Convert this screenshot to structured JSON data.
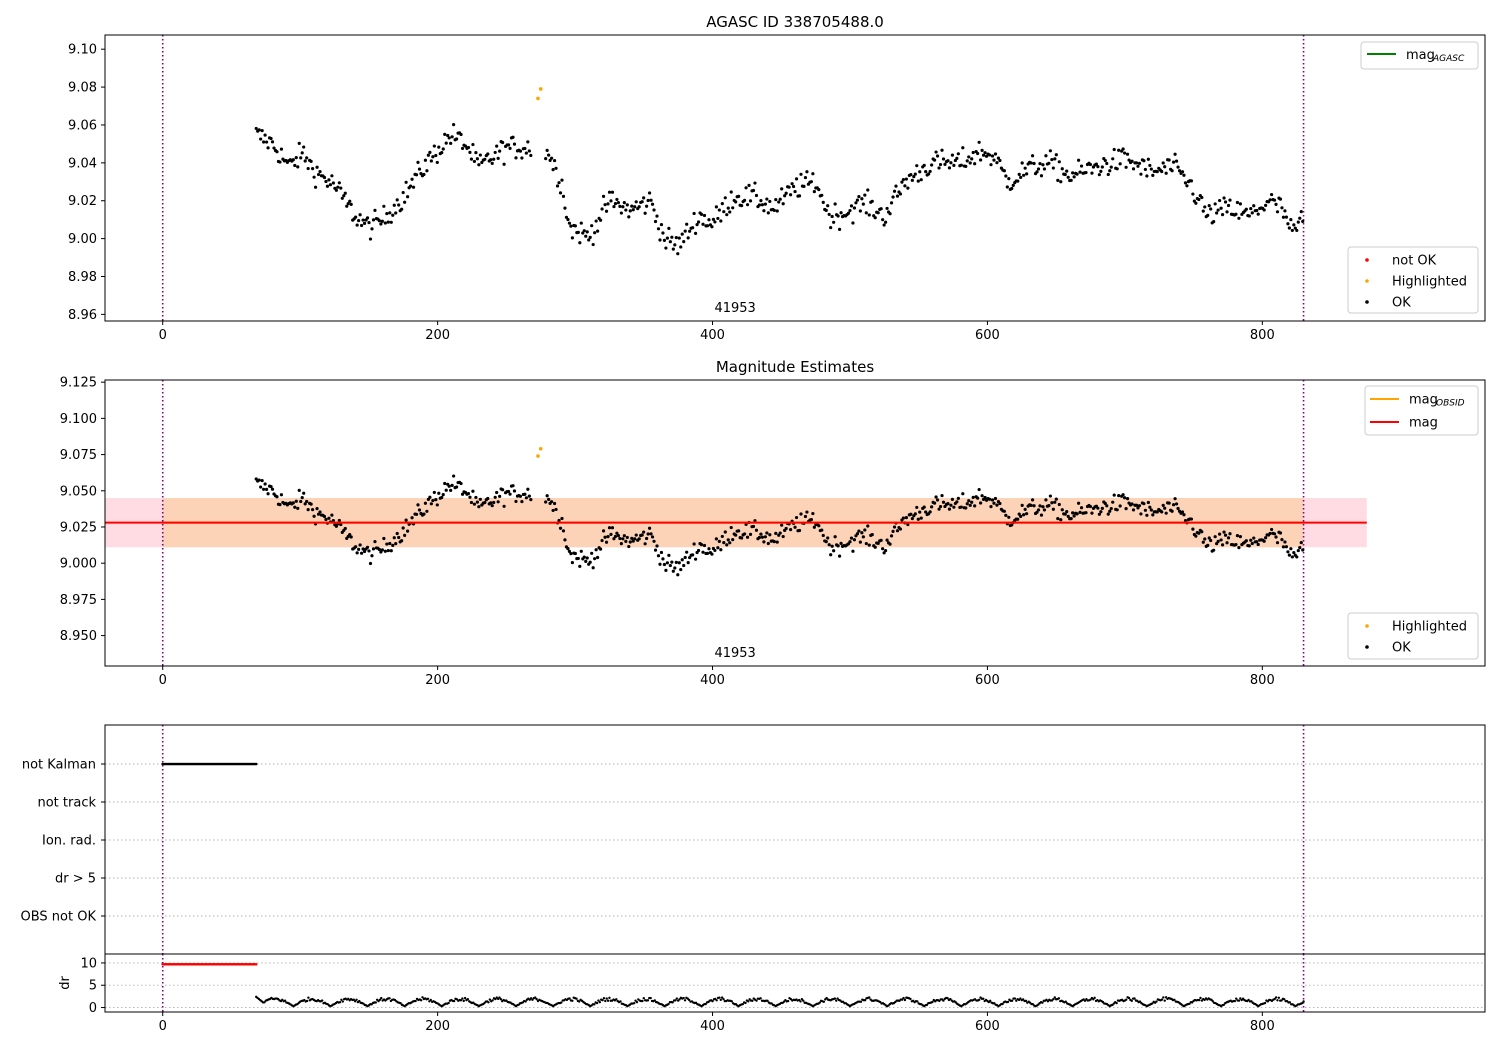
{
  "figure": {
    "colors": {
      "ok": "#000000",
      "not_ok": "#ff0000",
      "highlighted": "#ffa500",
      "mag_agasc": "#008000",
      "mag_obsid": "#ffa500",
      "mag": "#ff0000",
      "obs_boundary": "#800080",
      "band_outer": "#ffdce3",
      "band_inner": "#fdd3b8",
      "grid": "#b0b0b0"
    }
  },
  "chart_data": [
    {
      "id": "agasc",
      "type": "scatter",
      "title": "AGASC ID 338705488.0",
      "xlim": [
        -42,
        962
      ],
      "ylim": [
        8.9565,
        9.1075
      ],
      "xticks": [
        "0",
        "200",
        "400",
        "600",
        "800"
      ],
      "yticks": [
        "8.96",
        "8.98",
        "9.00",
        "9.02",
        "9.04",
        "9.06",
        "9.08",
        "9.10"
      ],
      "obs_boundaries_x": [
        0,
        830
      ],
      "obsid_label": "41953",
      "obsid_label_x": 415,
      "legend_lines": [
        {
          "label": "mag",
          "sub": "AGASC",
          "color": "#008000"
        }
      ],
      "legend_points": [
        {
          "label": "not OK",
          "color": "#ff0000"
        },
        {
          "label": "Highlighted",
          "color": "#ffa500"
        },
        {
          "label": "OK",
          "color": "#000000"
        }
      ],
      "series": [
        {
          "name": "OK",
          "color": "#000000",
          "description": "~700 magnitude samples from x=68 to x=830, oscillating between ~8.99 and ~9.06 around 9.028"
        },
        {
          "name": "Highlighted",
          "color": "#ffa500",
          "points": [
            [
              273,
              9.074
            ],
            [
              275,
              9.079
            ]
          ]
        }
      ]
    },
    {
      "id": "estimates",
      "type": "scatter",
      "title": "Magnitude Estimates",
      "xlim": [
        -42,
        962
      ],
      "ylim": [
        8.929,
        9.1265
      ],
      "xticks": [
        "0",
        "200",
        "400",
        "600",
        "800"
      ],
      "yticks": [
        "8.950",
        "8.975",
        "9.000",
        "9.025",
        "9.050",
        "9.075",
        "9.100",
        "9.125"
      ],
      "obs_boundaries_x": [
        0,
        830
      ],
      "obsid_label": "41953",
      "obsid_label_x": 415,
      "mag_line": 9.028,
      "mag_band": [
        9.011,
        9.045
      ],
      "mag_band_x": [
        -42,
        876
      ],
      "mag_obsid_band_x": [
        0,
        830
      ],
      "legend_lines": [
        {
          "label": "mag",
          "sub": "OBSID",
          "color": "#ffa500"
        },
        {
          "label": "mag",
          "sub": "",
          "color": "#ff0000"
        }
      ],
      "legend_points": [
        {
          "label": "Highlighted",
          "color": "#ffa500"
        },
        {
          "label": "OK",
          "color": "#000000"
        }
      ]
    },
    {
      "id": "flags",
      "type": "scatter",
      "categories": [
        "not Kalman",
        "not track",
        "Ion. rad.",
        "dr > 5",
        "OBS not OK"
      ],
      "flag_ranges": [
        {
          "category": "not Kalman",
          "x": [
            0,
            68
          ]
        }
      ],
      "obs_boundaries_x": [
        0,
        830
      ]
    },
    {
      "id": "dr",
      "type": "scatter",
      "ylabel": "dr",
      "ylim": [
        -1,
        12
      ],
      "xlim": [
        -42,
        962
      ],
      "yticks": [
        "0",
        "5",
        "10"
      ],
      "xticks": [
        "0",
        "200",
        "400",
        "600",
        "800"
      ],
      "not_ok_range": {
        "x": [
          0,
          68
        ],
        "y": 9.7
      },
      "description": "dr values between 0 and ~2.6 for x=68 to x=830",
      "obs_boundaries_x": [
        0,
        830
      ]
    }
  ]
}
